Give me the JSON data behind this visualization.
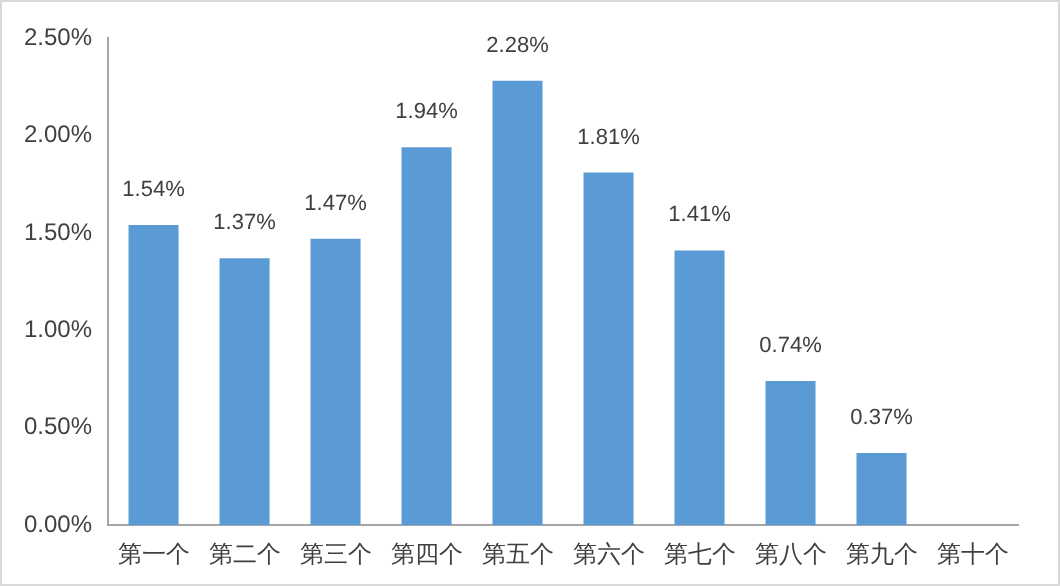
{
  "chart_data": {
    "type": "bar",
    "categories": [
      "第一个",
      "第二个",
      "第三个",
      "第四个",
      "第五个",
      "第六个",
      "第七个",
      "第八个",
      "第九个",
      "第十个"
    ],
    "values": [
      1.54,
      1.37,
      1.47,
      1.94,
      2.28,
      1.81,
      1.41,
      0.74,
      0.37,
      null
    ],
    "value_labels": [
      "1.54%",
      "1.37%",
      "1.47%",
      "1.94%",
      "2.28%",
      "1.81%",
      "1.41%",
      "0.74%",
      "0.37%",
      null
    ],
    "color": "#5b9bd5",
    "ylim": [
      0,
      2.5
    ],
    "yticks": [
      {
        "value": 0,
        "label": "0.00%"
      },
      {
        "value": 0.5,
        "label": "0.50%"
      },
      {
        "value": 1,
        "label": "1.00%"
      },
      {
        "value": 1.5,
        "label": "1.50%"
      },
      {
        "value": 2,
        "label": "2.00%"
      },
      {
        "value": 2.5,
        "label": "2.50%"
      }
    ],
    "grid": false,
    "legend": false
  }
}
